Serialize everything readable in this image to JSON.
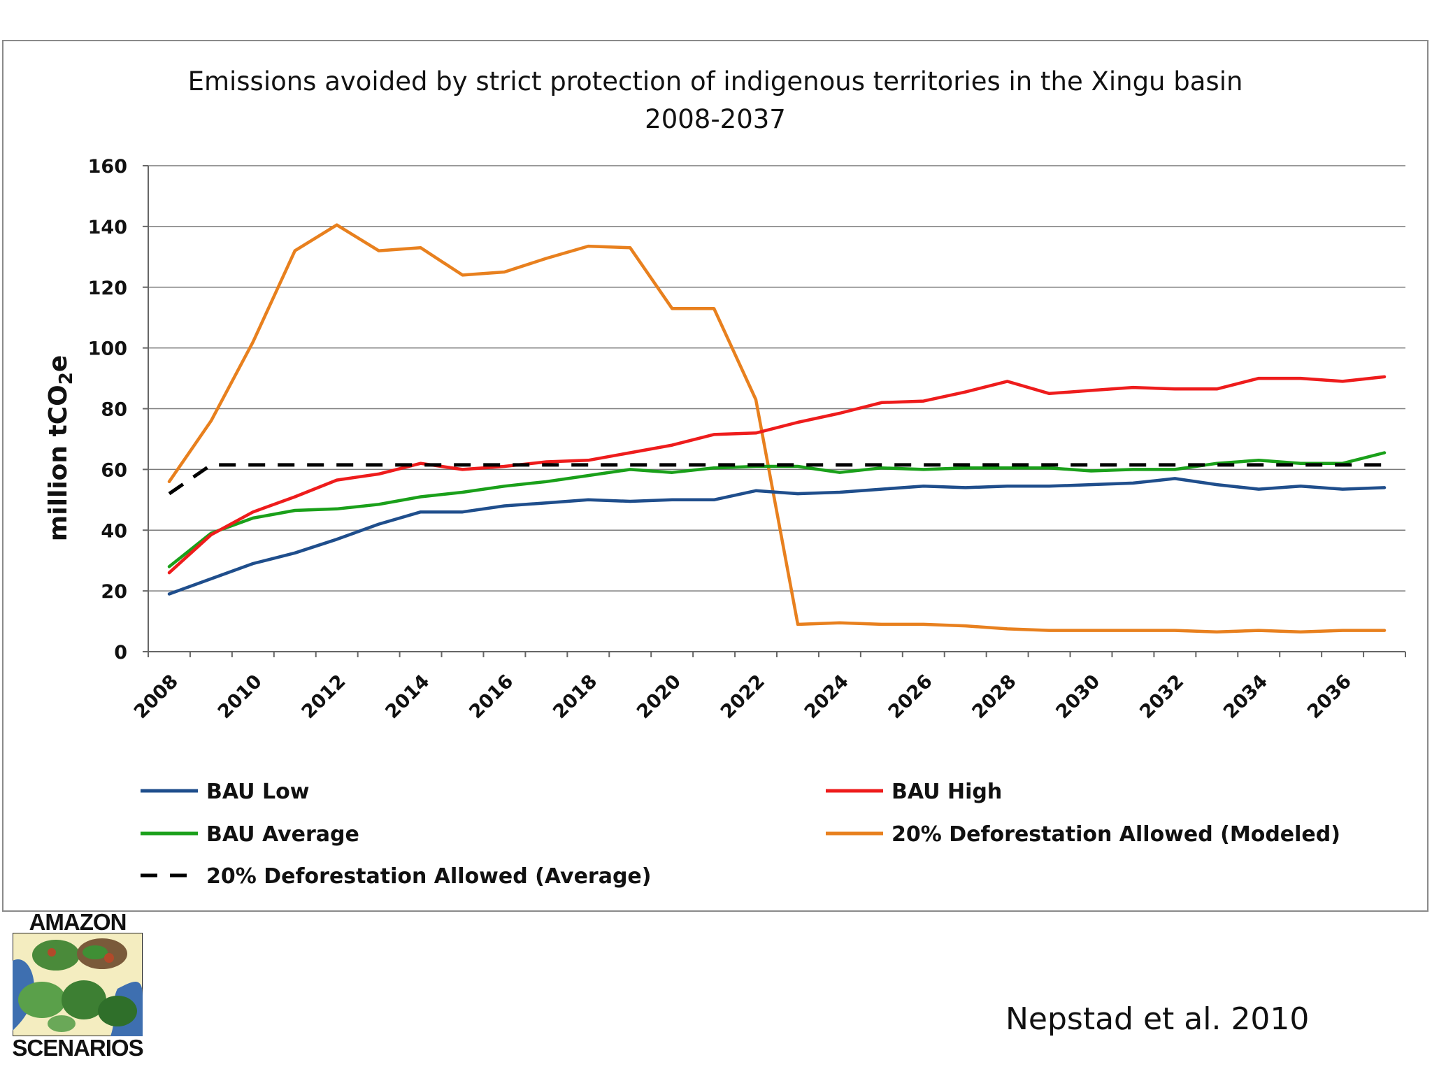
{
  "chart_data": {
    "type": "line",
    "title": "Emissions avoided by strict protection of indigenous territories in the Xingu basin",
    "subtitle": "2008-2037",
    "ylabel": "million tCO2e",
    "ylabel_main": "million tCO",
    "ylabel_sub": "2",
    "ylabel_end": "e",
    "ylim": [
      0,
      160
    ],
    "yticks": [
      0,
      20,
      40,
      60,
      80,
      100,
      120,
      140,
      160
    ],
    "x": [
      2008,
      2009,
      2010,
      2011,
      2012,
      2013,
      2014,
      2015,
      2016,
      2017,
      2018,
      2019,
      2020,
      2021,
      2022,
      2023,
      2024,
      2025,
      2026,
      2027,
      2028,
      2029,
      2030,
      2031,
      2032,
      2033,
      2034,
      2035,
      2036,
      2037
    ],
    "xticks": [
      "2008",
      "2010",
      "2012",
      "2014",
      "2016",
      "2018",
      "2020",
      "2022",
      "2024",
      "2026",
      "2028",
      "2030",
      "2032",
      "2034",
      "2036"
    ],
    "grid": true,
    "legend_position": "bottom",
    "series": [
      {
        "name": "BAU Low",
        "color": "#1f4e8c",
        "dash": false,
        "values": [
          19,
          24,
          29,
          32.5,
          37,
          42,
          46,
          46,
          48,
          49,
          50,
          49.5,
          50,
          50,
          53,
          52,
          52.5,
          53.5,
          54.5,
          54,
          54.5,
          54.5,
          55,
          55.5,
          57,
          55,
          53.5,
          54.5,
          53.5,
          54
        ]
      },
      {
        "name": "BAU High",
        "color": "#ee1c1c",
        "dash": false,
        "values": [
          26,
          38.5,
          46,
          51,
          56.5,
          58.5,
          62,
          60,
          61,
          62.5,
          63,
          65.5,
          68,
          71.5,
          72,
          75.5,
          78.5,
          82,
          82.5,
          85.5,
          89,
          85,
          86,
          87,
          86.5,
          86.5,
          90,
          90,
          89,
          90.5
        ]
      },
      {
        "name": "BAU Average",
        "color": "#1aa01a",
        "dash": false,
        "values": [
          28,
          39,
          44,
          46.5,
          47,
          48.5,
          51,
          52.5,
          54.5,
          56,
          58,
          60,
          59,
          60.5,
          61,
          61,
          59,
          60.5,
          60,
          60.5,
          60.5,
          60.5,
          59.5,
          60,
          60,
          62,
          63,
          62,
          62,
          65.5
        ]
      },
      {
        "name": "20% Deforestation Allowed (Modeled)",
        "color": "#e8801e",
        "dash": false,
        "values": [
          56,
          76,
          102,
          132,
          140.5,
          132,
          133,
          124,
          125,
          129.5,
          133.5,
          133,
          113,
          113,
          83,
          9,
          9.5,
          9,
          9,
          8.5,
          7.5,
          7,
          7,
          7,
          7,
          6.5,
          7,
          6.5,
          7,
          7
        ]
      },
      {
        "name": "20% Deforestation Allowed (Average)",
        "color": "#000000",
        "dash": true,
        "values": [
          52,
          61.5,
          61.5,
          61.5,
          61.5,
          61.5,
          61.5,
          61.5,
          61.5,
          61.5,
          61.5,
          61.5,
          61.5,
          61.5,
          61.5,
          61.5,
          61.5,
          61.5,
          61.5,
          61.5,
          61.5,
          61.5,
          61.5,
          61.5,
          61.5,
          61.5,
          61.5,
          61.5,
          61.5,
          61.5
        ]
      }
    ]
  },
  "logo": {
    "top": "AMAZON",
    "bottom": "SCENARIOS"
  },
  "citation": "Nepstad et al. 2010",
  "legend_order": [
    0,
    1,
    2,
    3,
    4
  ]
}
